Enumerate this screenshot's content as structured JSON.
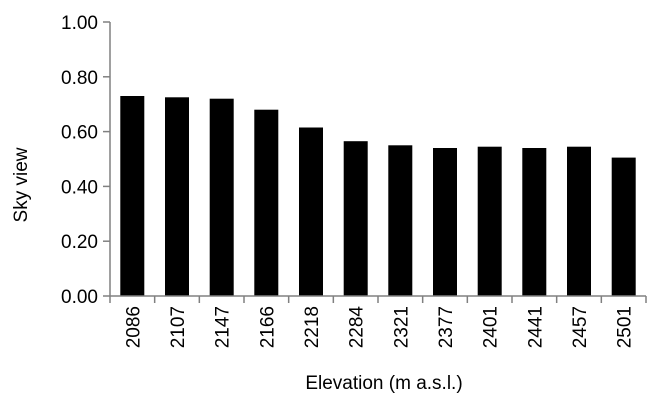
{
  "chart_data": {
    "type": "bar",
    "categories": [
      "2086",
      "2107",
      "2147",
      "2166",
      "2218",
      "2284",
      "2321",
      "2377",
      "2401",
      "2441",
      "2457",
      "2501"
    ],
    "values": [
      0.73,
      0.725,
      0.72,
      0.68,
      0.615,
      0.565,
      0.55,
      0.54,
      0.545,
      0.54,
      0.545,
      0.505
    ],
    "ylim": [
      0,
      1.0
    ],
    "yticks": [
      "0.00",
      "0.20",
      "0.40",
      "0.60",
      "0.80",
      "1.00"
    ],
    "xlabel": "Elevation (m a.s.l.)",
    "ylabel": "Sky  view",
    "grid": false,
    "legend": "none",
    "bar_color": "#000000",
    "axis_color": "#808080"
  }
}
